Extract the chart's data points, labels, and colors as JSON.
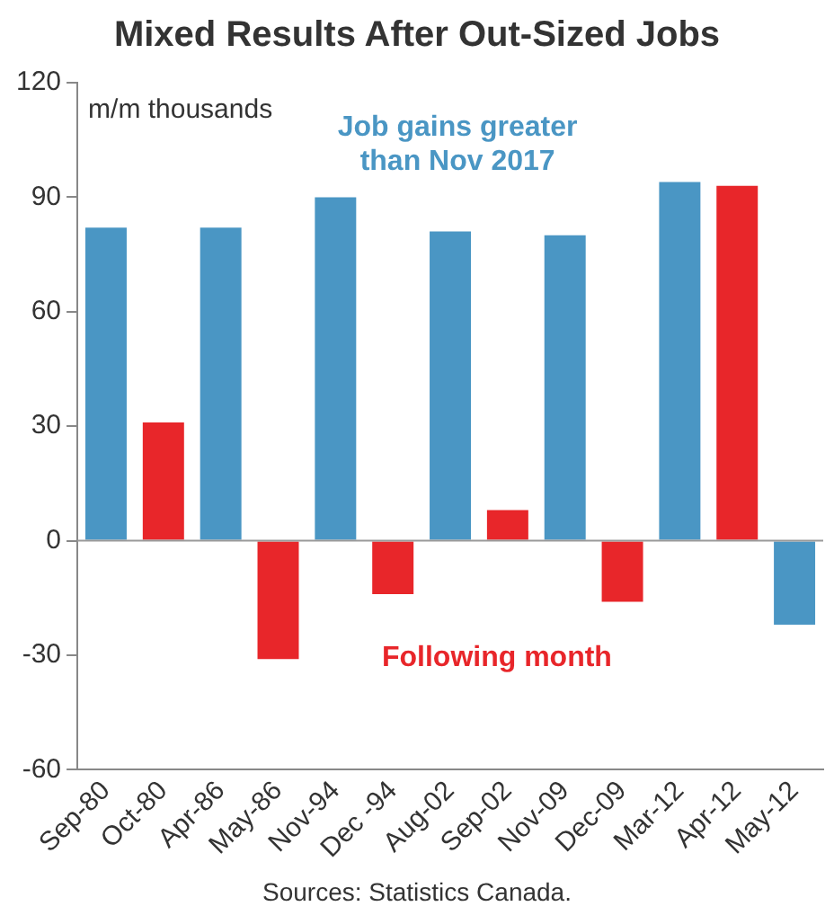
{
  "chart_data": {
    "type": "bar",
    "title": "Mixed Results After Out-Sized Jobs",
    "categories": [
      "Sep-80",
      "Oct-80",
      "Apr-86",
      "May-86",
      "Nov-94",
      "Dec -94",
      "Aug-02",
      "Sep-02",
      "Nov-09",
      "Dec-09",
      "Mar-12",
      "Apr-12",
      "May-12"
    ],
    "values": [
      82,
      31,
      82,
      -31,
      90,
      -14,
      81,
      8,
      80,
      -16,
      94,
      93,
      -22
    ],
    "colors": [
      "#4a96c4",
      "#e8262a",
      "#4a96c4",
      "#e8262a",
      "#4a96c4",
      "#e8262a",
      "#4a96c4",
      "#e8262a",
      "#4a96c4",
      "#e8262a",
      "#4a96c4",
      "#e8262a",
      "#4a96c4"
    ],
    "ylim": [
      -60,
      120
    ],
    "yticks": [
      -60,
      -30,
      0,
      30,
      60,
      90,
      120
    ],
    "grid": false,
    "legend": false,
    "ref_lines": [
      {
        "axis": "y",
        "value": 0
      }
    ],
    "annotations": [
      "m/m thousands",
      "Job gains greater than Nov 2017",
      "Following month",
      "Sources: Statistics Canada."
    ]
  }
}
